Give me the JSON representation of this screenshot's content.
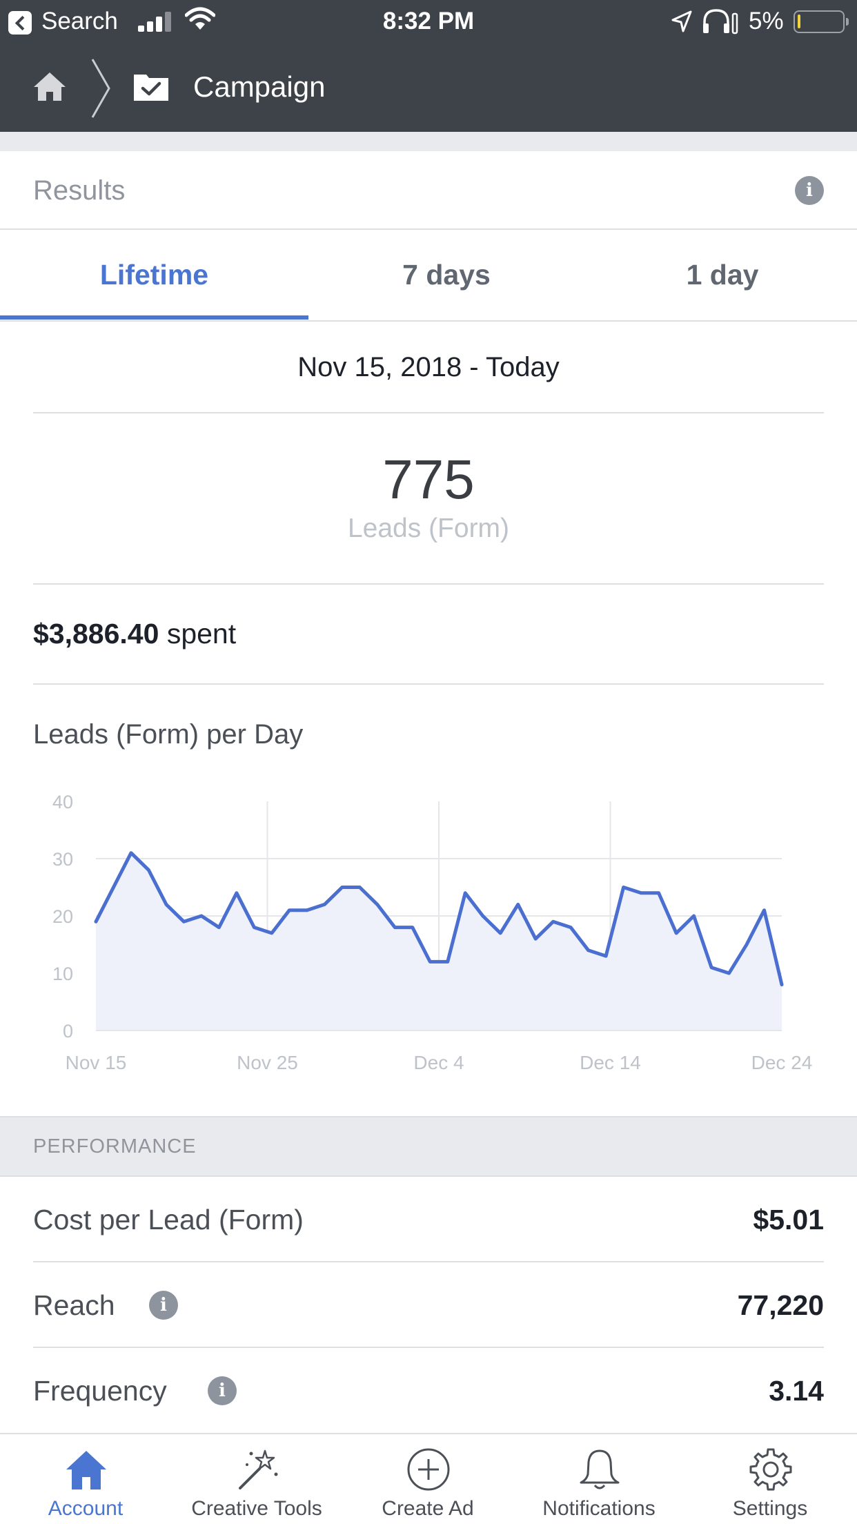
{
  "status_bar": {
    "back_label": "Search",
    "time": "8:32 PM",
    "battery": "5%",
    "icons": [
      "back-chip-icon",
      "signal-icon",
      "wifi-icon",
      "location-arrow-icon",
      "headphones-icon",
      "battery-icon"
    ]
  },
  "header": {
    "breadcrumb_icons": [
      "home-icon",
      "chevron-right-icon",
      "campaign-folder-icon"
    ],
    "title": "Campaign"
  },
  "results": {
    "title": "Results",
    "info_icon": "i"
  },
  "tabs": [
    {
      "label": "Lifetime",
      "active": true
    },
    {
      "label": "7 days",
      "active": false
    },
    {
      "label": "1 day",
      "active": false
    }
  ],
  "date_range": "Nov 15, 2018 - Today",
  "summary": {
    "value": "775",
    "label": "Leads (Form)"
  },
  "spent": {
    "amount": "$3,886.40",
    "suffix": "spent"
  },
  "chart_title": "Leads (Form) per Day",
  "chart_data": {
    "type": "area",
    "title": "Leads (Form) per Day",
    "xlabel": "",
    "ylabel": "",
    "ylim": [
      0,
      40
    ],
    "yticks": [
      "0",
      "10",
      "20",
      "30",
      "40"
    ],
    "x_tick_labels": [
      "Nov 15",
      "Nov 25",
      "Dec 4",
      "Dec 14",
      "Dec 24"
    ],
    "grid": true,
    "colors": {
      "line": "#4a6fd0",
      "fill": "#eef0fa",
      "grid": "#e4e6ea",
      "tick": "#bec2c9"
    },
    "series": [
      {
        "values": [
          19,
          25,
          31,
          28,
          22,
          19,
          20,
          18,
          24,
          18,
          17,
          21,
          21,
          22,
          25,
          25,
          22,
          18,
          18,
          12,
          12,
          24,
          20,
          17,
          22,
          16,
          19,
          18,
          14,
          13,
          25,
          24,
          24,
          17,
          20,
          11,
          10,
          15,
          21,
          8
        ]
      }
    ]
  },
  "performance": {
    "section_title": "PERFORMANCE",
    "rows": [
      {
        "label": "Cost per Lead (Form)",
        "value": "$5.01",
        "info": false
      },
      {
        "label": "Reach",
        "value": "77,220",
        "info": true,
        "info_icon": "i"
      },
      {
        "label": "Frequency",
        "value": "3.14",
        "info": true,
        "info_icon": "i"
      }
    ]
  },
  "tabbar": [
    {
      "label": "Account",
      "icon": "home-icon",
      "active": true
    },
    {
      "label": "Creative Tools",
      "icon": "magic-wand-icon",
      "active": false
    },
    {
      "label": "Create Ad",
      "icon": "plus-circle-icon",
      "active": false
    },
    {
      "label": "Notifications",
      "icon": "bell-icon",
      "active": false
    },
    {
      "label": "Settings",
      "icon": "gear-icon",
      "active": false
    }
  ],
  "colors": {
    "header_bg": "#3e4249",
    "accent": "#4a76d1",
    "chart_line": "#4a6fd0"
  }
}
